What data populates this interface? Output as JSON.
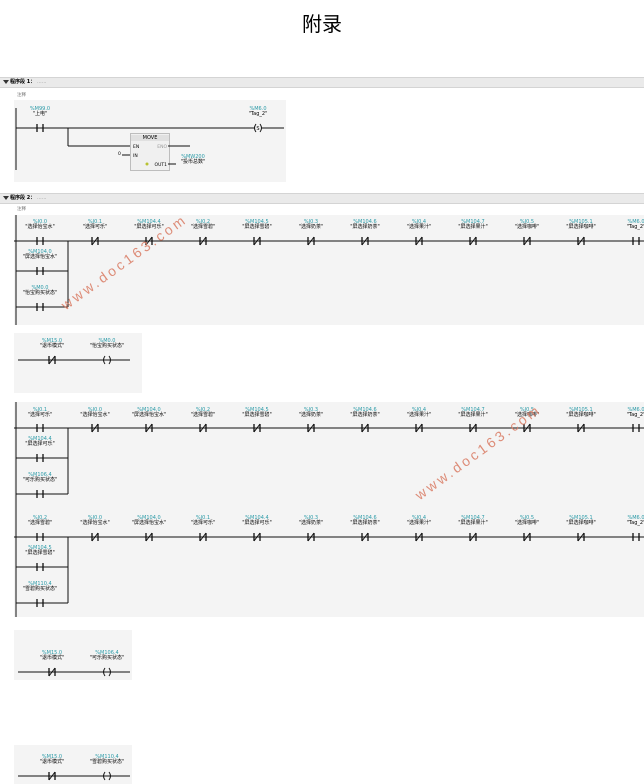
{
  "page_title": "附录",
  "network1": {
    "label": "程序段 1：",
    "dots": "......",
    "comment": "注释",
    "contact": {
      "addr": "%M99.0",
      "name": "\"上电\""
    },
    "coil": {
      "addr": "%M6.0",
      "name": "\"Tag_2\"",
      "symbol": "S"
    },
    "move": {
      "title": "MOVE",
      "en": "EN",
      "eno": "ENO",
      "in": "IN",
      "out": "OUT1",
      "in_value": "0",
      "out_addr": "%MW200",
      "out_name": "\"投币总数\""
    }
  },
  "network2": {
    "label": "程序段 2：",
    "dots": "......",
    "comment": "注释"
  },
  "rung_a": {
    "contacts": [
      {
        "addr": "%I0.0",
        "name": "\"选择怡宝水\""
      },
      {
        "addr": "%I0.1",
        "name": "\"选择可乐\""
      },
      {
        "addr": "%M104.4",
        "name": "\"屏选择可乐\""
      },
      {
        "addr": "%I0.2",
        "name": "\"选择雪碧\""
      },
      {
        "addr": "%M104.5",
        "name": "\"屏选择雪碧\""
      },
      {
        "addr": "%I0.3",
        "name": "\"选择奶茶\""
      },
      {
        "addr": "%M104.6",
        "name": "\"屏选择奶茶\""
      },
      {
        "addr": "%I0.4",
        "name": "\"选择果汁\""
      },
      {
        "addr": "%M104.7",
        "name": "\"屏选择果汁\""
      },
      {
        "addr": "%I0.5",
        "name": "\"选择咖啡\""
      },
      {
        "addr": "%M105.1",
        "name": "\"屏选择咖啡\""
      },
      {
        "addr": "%M6.0",
        "name": "\"Tag_2\""
      }
    ],
    "branch": [
      {
        "addr": "%M104.0",
        "name": "\"屏选择怡宝水\""
      },
      {
        "addr": "%M0.0",
        "name": "\"怡宝购买状态\""
      }
    ]
  },
  "rung_a_out": {
    "contact": {
      "addr": "%M15.0",
      "name": "\"退币模式\""
    },
    "coil": {
      "addr": "%M0.0",
      "name": "\"怡宝购买状态\""
    }
  },
  "rung_b": {
    "contacts": [
      {
        "addr": "%I0.1",
        "name": "\"选择可乐\""
      },
      {
        "addr": "%I0.0",
        "name": "\"选择怡宝水\""
      },
      {
        "addr": "%M104.0",
        "name": "\"屏选择怡宝水\""
      },
      {
        "addr": "%I0.2",
        "name": "\"选择雪碧\""
      },
      {
        "addr": "%M104.5",
        "name": "\"屏选择雪碧\""
      },
      {
        "addr": "%I0.3",
        "name": "\"选择奶茶\""
      },
      {
        "addr": "%M104.6",
        "name": "\"屏选择奶茶\""
      },
      {
        "addr": "%I0.4",
        "name": "\"选择果汁\""
      },
      {
        "addr": "%M104.7",
        "name": "\"屏选择果汁\""
      },
      {
        "addr": "%I0.5",
        "name": "\"选择咖啡\""
      },
      {
        "addr": "%M105.1",
        "name": "\"屏选择咖啡\""
      },
      {
        "addr": "%M6.0",
        "name": "\"Tag_2\""
      }
    ],
    "branch": [
      {
        "addr": "%M104.4",
        "name": "\"屏选择可乐\""
      },
      {
        "addr": "%M106.4",
        "name": "\"可乐购买状态\""
      }
    ]
  },
  "rung_c": {
    "contacts": [
      {
        "addr": "%I0.2",
        "name": "\"选择雪碧\""
      },
      {
        "addr": "%I0.0",
        "name": "\"选择怡宝水\""
      },
      {
        "addr": "%M104.0",
        "name": "\"屏选择怡宝水\""
      },
      {
        "addr": "%I0.1",
        "name": "\"选择可乐\""
      },
      {
        "addr": "%M104.4",
        "name": "\"屏选择可乐\""
      },
      {
        "addr": "%I0.3",
        "name": "\"选择奶茶\""
      },
      {
        "addr": "%M104.6",
        "name": "\"屏选择奶茶\""
      },
      {
        "addr": "%I0.4",
        "name": "\"选择果汁\""
      },
      {
        "addr": "%M104.7",
        "name": "\"屏选择果汁\""
      },
      {
        "addr": "%I0.5",
        "name": "\"选择咖啡\""
      },
      {
        "addr": "%M105.1",
        "name": "\"屏选择咖啡\""
      },
      {
        "addr": "%M6.0",
        "name": "\"Tag_2\""
      }
    ],
    "branch": [
      {
        "addr": "%M104.5",
        "name": "\"屏选择雪碧\""
      },
      {
        "addr": "%M110.4",
        "name": "\"雪碧购买状态\""
      }
    ]
  },
  "rung_d_out": {
    "contact": {
      "addr": "%M15.0",
      "name": "\"退币模式\""
    },
    "coil": {
      "addr": "%M106.4",
      "name": "\"可乐购买状态\""
    }
  },
  "rung_e_out": {
    "contact": {
      "addr": "%M15.0",
      "name": "\"退币模式\""
    },
    "coil": {
      "addr": "%M110.4",
      "name": "\"雪碧购买状态\""
    }
  },
  "watermark": "www.doc163.com"
}
